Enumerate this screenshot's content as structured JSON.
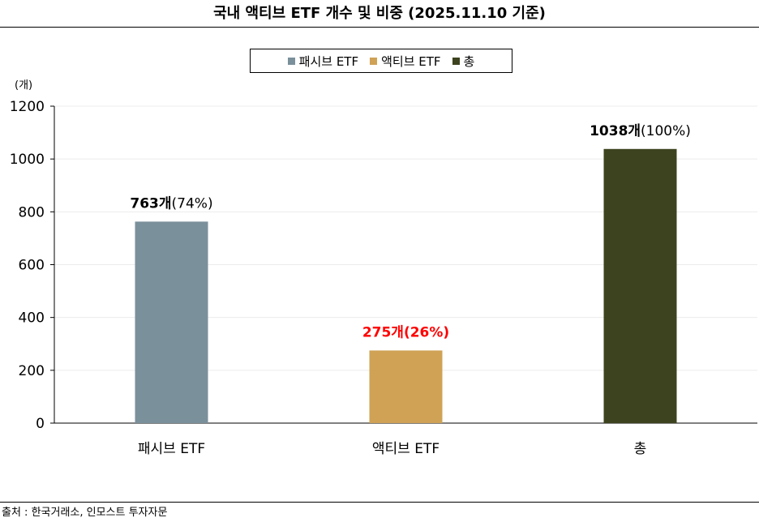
{
  "title": "국내 액티브 ETF 개수 및 비중 (2025.11.10 기준)",
  "source": "출처 : 한국거래소, 인모스트 투자자문",
  "unit_label": "(개)",
  "colors": {
    "passive": "#7a909b",
    "active": "#cfa256",
    "total": "#3d431e",
    "highlight_label": "#ff0000"
  },
  "legend": [
    {
      "label": "패시브 ETF",
      "color": "#7a909b"
    },
    {
      "label": "액티브 ETF",
      "color": "#cfa256"
    },
    {
      "label": "총",
      "color": "#3d431e"
    }
  ],
  "chart_data": {
    "type": "bar",
    "categories": [
      "패시브 ETF",
      "액티브 ETF",
      "총"
    ],
    "values": [
      763,
      275,
      1038
    ],
    "data_labels": [
      {
        "count": "763개",
        "pct": "(74%)",
        "bold_all": false,
        "color": "#000000"
      },
      {
        "count": "275개",
        "pct": "(26%)",
        "bold_all": true,
        "color": "#ff0000"
      },
      {
        "count": "1038개",
        "pct": "(100%)",
        "bold_all": false,
        "color": "#000000"
      }
    ],
    "ylim": [
      0,
      1200
    ],
    "yticks": [
      0,
      200,
      400,
      600,
      800,
      1000,
      1200
    ],
    "grid": true,
    "legend_position": "top-center"
  }
}
